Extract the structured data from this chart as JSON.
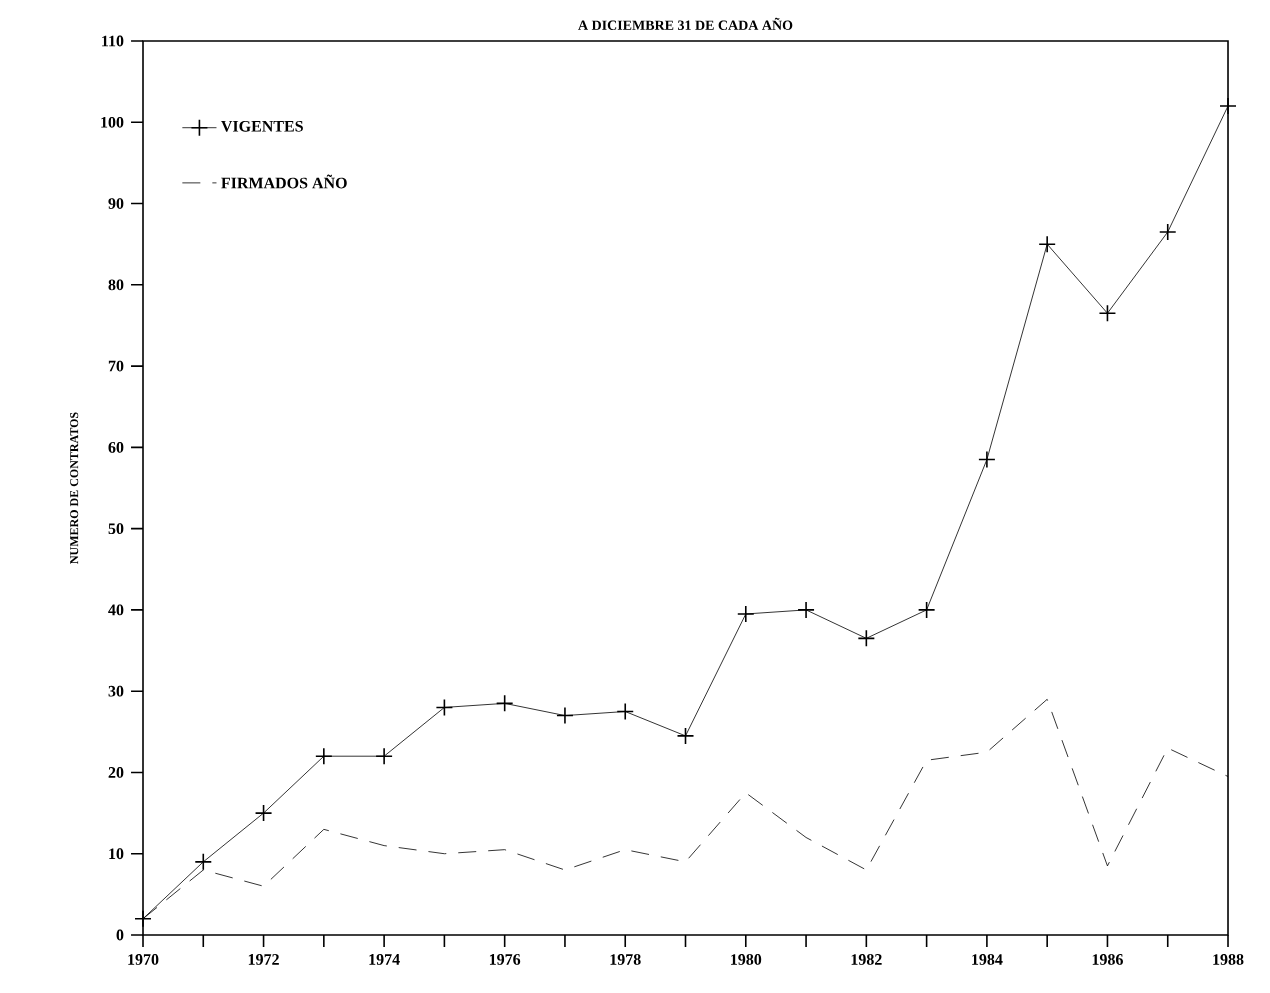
{
  "chart_data": {
    "type": "line",
    "title": "A DICIEMBRE 31 DE CADA AÑO",
    "ylabel": "NUMERO DE CONTRATOS",
    "x": [
      1970,
      1971,
      1972,
      1973,
      1974,
      1975,
      1976,
      1977,
      1978,
      1979,
      1980,
      1981,
      1982,
      1983,
      1984,
      1985,
      1986,
      1987,
      1988
    ],
    "series": [
      {
        "name": "VIGENTES",
        "color": "#000000",
        "marker": "cross",
        "line_style": "solid",
        "values": [
          2,
          9,
          15,
          22,
          22,
          28,
          28.5,
          27,
          27.5,
          24.5,
          39.5,
          40,
          36.5,
          40,
          58.5,
          85,
          76.5,
          86.5,
          102
        ]
      },
      {
        "name": "FIRMADOS AÑO",
        "color": "#000000",
        "marker": "none",
        "line_style": "dashed",
        "values": [
          2,
          8,
          6,
          13,
          11,
          10,
          10.5,
          8,
          10.5,
          9,
          17.5,
          12,
          8,
          21.5,
          22.5,
          29,
          8.5,
          23,
          19.5
        ]
      }
    ],
    "xlim": [
      1970,
      1988
    ],
    "xticks": [
      1970,
      {
        "value": 1971,
        "label": null
      },
      1972,
      {
        "value": 1973,
        "label": null
      },
      1974,
      {
        "value": 1975,
        "label": null
      },
      1976,
      {
        "value": 1977,
        "label": null
      },
      1978,
      {
        "value": 1979,
        "label": null
      },
      1980,
      {
        "value": 1981,
        "label": null
      },
      1982,
      {
        "value": 1983,
        "label": null
      },
      1984,
      {
        "value": 1985,
        "label": null
      },
      1986,
      {
        "value": 1987,
        "label": null
      },
      1988
    ],
    "ylim": [
      0,
      110
    ],
    "yticks": [
      0,
      10,
      20,
      30,
      40,
      50,
      60,
      70,
      80,
      90,
      100,
      110
    ],
    "grid": false,
    "legend": "top left"
  }
}
